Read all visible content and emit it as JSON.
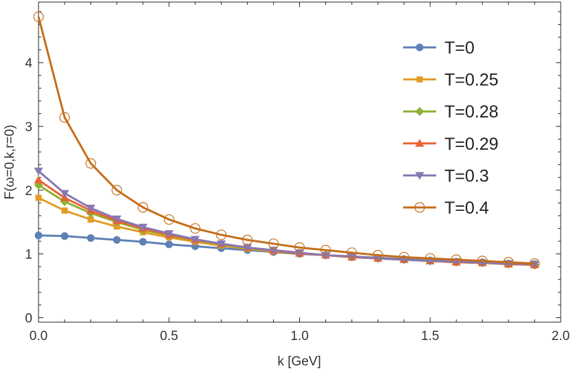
{
  "chart_data": {
    "type": "line",
    "xlabel": "k [GeV]",
    "ylabel": "F(ω=0,k,r=0)",
    "xlim": [
      0,
      2.0
    ],
    "ylim": [
      -0.07,
      4.95
    ],
    "xticks": [
      0,
      0.5,
      1.0,
      1.5,
      2.0
    ],
    "xtick_labels": [
      "0.0",
      "0.5",
      "1.0",
      "1.5",
      "2.0"
    ],
    "yticks": [
      0,
      1,
      2,
      3,
      4
    ],
    "ytick_labels": [
      "0",
      "1",
      "2",
      "3",
      "4"
    ],
    "grid": false,
    "legend_position": "right",
    "x": [
      0,
      0.1,
      0.2,
      0.3,
      0.4,
      0.5,
      0.6,
      0.7,
      0.8,
      0.9,
      1.0,
      1.1,
      1.2,
      1.3,
      1.4,
      1.5,
      1.6,
      1.7,
      1.8,
      1.9
    ],
    "series": [
      {
        "name": "T=0",
        "color": "#5e81b5",
        "marker": "circle",
        "values": [
          1.29,
          1.28,
          1.25,
          1.22,
          1.19,
          1.15,
          1.12,
          1.09,
          1.06,
          1.03,
          1.0,
          0.98,
          0.96,
          0.94,
          0.92,
          0.9,
          0.88,
          0.87,
          0.85,
          0.84
        ]
      },
      {
        "name": "T=0.25",
        "color": "#e19c24",
        "marker": "square",
        "values": [
          1.88,
          1.68,
          1.54,
          1.43,
          1.34,
          1.26,
          1.19,
          1.13,
          1.08,
          1.04,
          1.01,
          0.98,
          0.95,
          0.93,
          0.91,
          0.89,
          0.87,
          0.86,
          0.85,
          0.84
        ]
      },
      {
        "name": "T=0.28",
        "color": "#8fb032",
        "marker": "diamond",
        "values": [
          2.08,
          1.82,
          1.64,
          1.5,
          1.38,
          1.29,
          1.21,
          1.15,
          1.09,
          1.05,
          1.01,
          0.98,
          0.95,
          0.93,
          0.91,
          0.89,
          0.87,
          0.86,
          0.84,
          0.83
        ]
      },
      {
        "name": "T=0.29",
        "color": "#eb6235",
        "marker": "triangle-up",
        "values": [
          2.16,
          1.88,
          1.68,
          1.52,
          1.4,
          1.3,
          1.22,
          1.16,
          1.1,
          1.05,
          1.01,
          0.98,
          0.95,
          0.93,
          0.91,
          0.89,
          0.87,
          0.86,
          0.84,
          0.83
        ]
      },
      {
        "name": "T=0.3",
        "color": "#8778b3",
        "marker": "triangle-down",
        "values": [
          2.3,
          1.95,
          1.72,
          1.55,
          1.42,
          1.32,
          1.23,
          1.16,
          1.1,
          1.06,
          1.02,
          0.98,
          0.96,
          0.93,
          0.91,
          0.89,
          0.88,
          0.86,
          0.85,
          0.84
        ]
      },
      {
        "name": "T=0.4",
        "color": "#c56e1a",
        "marker": "open-circle",
        "values": [
          4.72,
          3.14,
          2.42,
          2.0,
          1.73,
          1.54,
          1.4,
          1.3,
          1.22,
          1.16,
          1.1,
          1.06,
          1.02,
          0.98,
          0.95,
          0.93,
          0.91,
          0.89,
          0.87,
          0.85
        ]
      }
    ]
  }
}
